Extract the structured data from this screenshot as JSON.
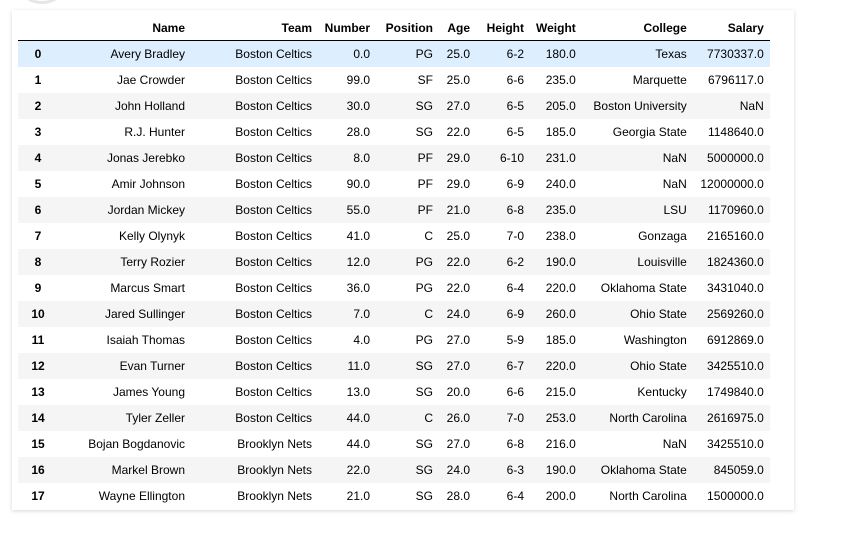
{
  "table": {
    "columns": [
      "",
      "Name",
      "Team",
      "Number",
      "Position",
      "Age",
      "Height",
      "Weight",
      "College",
      "Salary"
    ],
    "rows": [
      {
        "index": "0",
        "cells": [
          "Avery Bradley",
          "Boston Celtics",
          "0.0",
          "PG",
          "25.0",
          "6-2",
          "180.0",
          "Texas",
          "7730337.0"
        ]
      },
      {
        "index": "1",
        "cells": [
          "Jae Crowder",
          "Boston Celtics",
          "99.0",
          "SF",
          "25.0",
          "6-6",
          "235.0",
          "Marquette",
          "6796117.0"
        ]
      },
      {
        "index": "2",
        "cells": [
          "John Holland",
          "Boston Celtics",
          "30.0",
          "SG",
          "27.0",
          "6-5",
          "205.0",
          "Boston University",
          "NaN"
        ]
      },
      {
        "index": "3",
        "cells": [
          "R.J. Hunter",
          "Boston Celtics",
          "28.0",
          "SG",
          "22.0",
          "6-5",
          "185.0",
          "Georgia State",
          "1148640.0"
        ]
      },
      {
        "index": "4",
        "cells": [
          "Jonas Jerebko",
          "Boston Celtics",
          "8.0",
          "PF",
          "29.0",
          "6-10",
          "231.0",
          "NaN",
          "5000000.0"
        ]
      },
      {
        "index": "5",
        "cells": [
          "Amir Johnson",
          "Boston Celtics",
          "90.0",
          "PF",
          "29.0",
          "6-9",
          "240.0",
          "NaN",
          "12000000.0"
        ]
      },
      {
        "index": "6",
        "cells": [
          "Jordan Mickey",
          "Boston Celtics",
          "55.0",
          "PF",
          "21.0",
          "6-8",
          "235.0",
          "LSU",
          "1170960.0"
        ]
      },
      {
        "index": "7",
        "cells": [
          "Kelly Olynyk",
          "Boston Celtics",
          "41.0",
          "C",
          "25.0",
          "7-0",
          "238.0",
          "Gonzaga",
          "2165160.0"
        ]
      },
      {
        "index": "8",
        "cells": [
          "Terry Rozier",
          "Boston Celtics",
          "12.0",
          "PG",
          "22.0",
          "6-2",
          "190.0",
          "Louisville",
          "1824360.0"
        ]
      },
      {
        "index": "9",
        "cells": [
          "Marcus Smart",
          "Boston Celtics",
          "36.0",
          "PG",
          "22.0",
          "6-4",
          "220.0",
          "Oklahoma State",
          "3431040.0"
        ]
      },
      {
        "index": "10",
        "cells": [
          "Jared Sullinger",
          "Boston Celtics",
          "7.0",
          "C",
          "24.0",
          "6-9",
          "260.0",
          "Ohio State",
          "2569260.0"
        ]
      },
      {
        "index": "11",
        "cells": [
          "Isaiah Thomas",
          "Boston Celtics",
          "4.0",
          "PG",
          "27.0",
          "5-9",
          "185.0",
          "Washington",
          "6912869.0"
        ]
      },
      {
        "index": "12",
        "cells": [
          "Evan Turner",
          "Boston Celtics",
          "11.0",
          "SG",
          "27.0",
          "6-7",
          "220.0",
          "Ohio State",
          "3425510.0"
        ]
      },
      {
        "index": "13",
        "cells": [
          "James Young",
          "Boston Celtics",
          "13.0",
          "SG",
          "20.0",
          "6-6",
          "215.0",
          "Kentucky",
          "1749840.0"
        ]
      },
      {
        "index": "14",
        "cells": [
          "Tyler Zeller",
          "Boston Celtics",
          "44.0",
          "C",
          "26.0",
          "7-0",
          "253.0",
          "North Carolina",
          "2616975.0"
        ]
      },
      {
        "index": "15",
        "cells": [
          "Bojan Bogdanovic",
          "Brooklyn Nets",
          "44.0",
          "SG",
          "27.0",
          "6-8",
          "216.0",
          "NaN",
          "3425510.0"
        ]
      },
      {
        "index": "16",
        "cells": [
          "Markel Brown",
          "Brooklyn Nets",
          "22.0",
          "SG",
          "24.0",
          "6-3",
          "190.0",
          "Oklahoma State",
          "845059.0"
        ]
      },
      {
        "index": "17",
        "cells": [
          "Wayne Ellington",
          "Brooklyn Nets",
          "21.0",
          "SG",
          "28.0",
          "6-4",
          "200.0",
          "North Carolina",
          "1500000.0"
        ]
      }
    ],
    "selected_row_index": 0
  },
  "colors": {
    "selected_row": "#ddeeff",
    "striped_row": "#f5f5f5",
    "header_border": "#000000"
  }
}
